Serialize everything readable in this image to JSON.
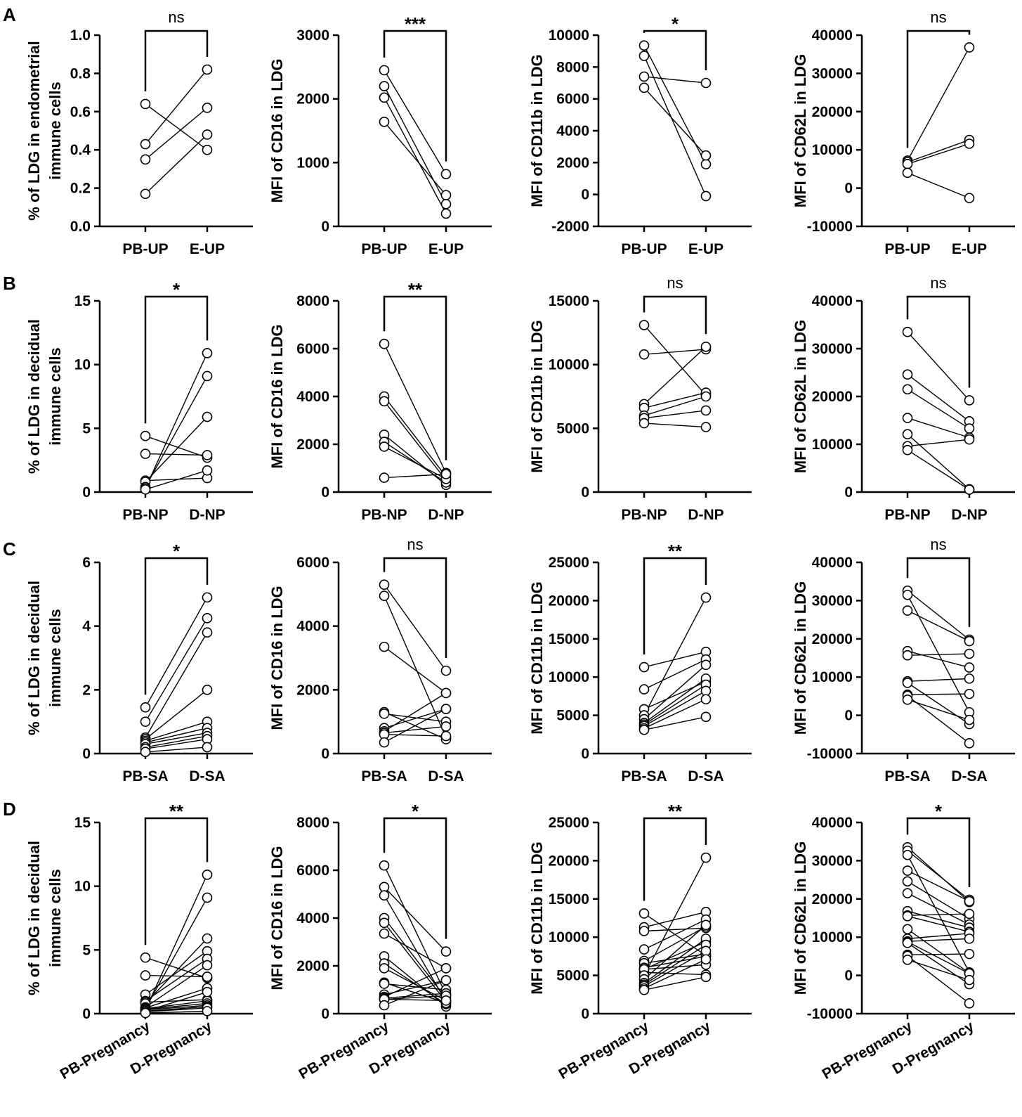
{
  "chart_data": [
    {
      "panel": "A",
      "type": "scatter",
      "paired": true,
      "ylabel": [
        "% of LDG in endometrial",
        "immune cells"
      ],
      "ylim": [
        0,
        1.0
      ],
      "yticks": [
        "0.0",
        "0.2",
        "0.4",
        "0.6",
        "0.8",
        "1.0"
      ],
      "categories": [
        "PB-UP",
        "E-UP"
      ],
      "significance": "ns",
      "pairs": [
        [
          0.17,
          0.48
        ],
        [
          0.35,
          0.62
        ],
        [
          0.43,
          0.82
        ],
        [
          0.64,
          0.4
        ]
      ]
    },
    {
      "panel": "A",
      "type": "scatter",
      "paired": true,
      "ylabel": [
        "MFI of CD16 in LDG"
      ],
      "ylim": [
        0,
        3000
      ],
      "yticks": [
        "0",
        "1000",
        "2000",
        "3000"
      ],
      "categories": [
        "PB-UP",
        "E-UP"
      ],
      "significance": "***",
      "pairs": [
        [
          2450,
          820
        ],
        [
          2200,
          350
        ],
        [
          2020,
          200
        ],
        [
          1640,
          490
        ]
      ]
    },
    {
      "panel": "A",
      "type": "scatter",
      "paired": true,
      "ylabel": [
        "MFI of CD11b in LDG"
      ],
      "ylim": [
        -2000,
        10000
      ],
      "yticks": [
        "-2000",
        "0",
        "2000",
        "4000",
        "6000",
        "8000",
        "10000"
      ],
      "categories": [
        "PB-UP",
        "E-UP"
      ],
      "significance": "*",
      "pairs": [
        [
          9350,
          1900
        ],
        [
          8700,
          -100
        ],
        [
          7400,
          7000
        ],
        [
          6700,
          2450
        ]
      ]
    },
    {
      "panel": "A",
      "type": "scatter",
      "paired": true,
      "ylabel": [
        "MFI of CD62L in LDG"
      ],
      "ylim": [
        -10000,
        40000
      ],
      "yticks": [
        "-10000",
        "0",
        "10000",
        "20000",
        "30000",
        "40000"
      ],
      "categories": [
        "PB-UP",
        "E-UP"
      ],
      "significance": "ns",
      "pairs": [
        [
          7200,
          36800
        ],
        [
          6800,
          12600
        ],
        [
          6300,
          11600
        ],
        [
          4000,
          -2600
        ]
      ]
    },
    {
      "panel": "B",
      "type": "scatter",
      "paired": true,
      "ylabel": [
        "% of LDG in decidual",
        "immune cells"
      ],
      "ylim": [
        0,
        15
      ],
      "yticks": [
        "0",
        "5",
        "10",
        "15"
      ],
      "categories": [
        "PB-NP",
        "D-NP"
      ],
      "significance": "*",
      "pairs": [
        [
          4.4,
          2.7
        ],
        [
          3.0,
          2.9
        ],
        [
          0.9,
          1.1
        ],
        [
          0.8,
          5.9
        ],
        [
          0.4,
          9.1
        ],
        [
          0.3,
          10.9
        ],
        [
          0.2,
          1.7
        ]
      ]
    },
    {
      "panel": "B",
      "type": "scatter",
      "paired": true,
      "ylabel": [
        "MFI of CD16 in LDG"
      ],
      "ylim": [
        0,
        8000
      ],
      "yticks": [
        "0",
        "2000",
        "4000",
        "6000",
        "8000"
      ],
      "categories": [
        "PB-NP",
        "D-NP"
      ],
      "significance": "**",
      "pairs": [
        [
          6200,
          800
        ],
        [
          4000,
          650
        ],
        [
          3800,
          500
        ],
        [
          2400,
          300
        ],
        [
          2100,
          400
        ],
        [
          1900,
          550
        ],
        [
          600,
          750
        ]
      ]
    },
    {
      "panel": "B",
      "type": "scatter",
      "paired": true,
      "ylabel": [
        "MFI of CD11b in LDG"
      ],
      "ylim": [
        0,
        15000
      ],
      "yticks": [
        "0",
        "5000",
        "10000",
        "15000"
      ],
      "categories": [
        "PB-NP",
        "D-NP"
      ],
      "significance": "ns",
      "pairs": [
        [
          13100,
          7600
        ],
        [
          10800,
          11200
        ],
        [
          6900,
          11400
        ],
        [
          6600,
          7800
        ],
        [
          6000,
          7500
        ],
        [
          5800,
          6400
        ],
        [
          5400,
          5100
        ]
      ]
    },
    {
      "panel": "B",
      "type": "scatter",
      "paired": true,
      "ylabel": [
        "MFI of CD62L in LDG"
      ],
      "ylim": [
        0,
        40000
      ],
      "yticks": [
        "0",
        "10000",
        "20000",
        "30000",
        "40000"
      ],
      "categories": [
        "PB-NP",
        "D-NP"
      ],
      "significance": "ns",
      "pairs": [
        [
          33500,
          19200
        ],
        [
          24600,
          14800
        ],
        [
          21500,
          13300
        ],
        [
          15500,
          11400
        ],
        [
          12100,
          600
        ],
        [
          9600,
          11000
        ],
        [
          8800,
          500
        ]
      ]
    },
    {
      "panel": "C",
      "type": "scatter",
      "paired": true,
      "ylabel": [
        "% of LDG in decidual",
        "immune cells"
      ],
      "ylim": [
        0,
        6
      ],
      "yticks": [
        "0",
        "2",
        "4",
        "6"
      ],
      "categories": [
        "PB-SA",
        "D-SA"
      ],
      "significance": "*",
      "pairs": [
        [
          1.45,
          4.9
        ],
        [
          1.0,
          4.25
        ],
        [
          0.5,
          3.8
        ],
        [
          0.45,
          2.0
        ],
        [
          0.4,
          1.0
        ],
        [
          0.35,
          0.8
        ],
        [
          0.3,
          0.65
        ],
        [
          0.2,
          0.55
        ],
        [
          0.15,
          0.45
        ],
        [
          0.05,
          0.2
        ]
      ]
    },
    {
      "panel": "C",
      "type": "scatter",
      "paired": true,
      "ylabel": [
        "MFI of CD16 in LDG"
      ],
      "ylim": [
        0,
        6000
      ],
      "yticks": [
        "0",
        "2000",
        "4000",
        "6000"
      ],
      "categories": [
        "PB-SA",
        "D-SA"
      ],
      "significance": "ns",
      "pairs": [
        [
          5300,
          2600
        ],
        [
          4950,
          500
        ],
        [
          3350,
          1900
        ],
        [
          1300,
          450
        ],
        [
          1250,
          1000
        ],
        [
          800,
          1400
        ],
        [
          700,
          1900
        ],
        [
          650,
          850
        ],
        [
          600,
          550
        ],
        [
          350,
          1400
        ]
      ]
    },
    {
      "panel": "C",
      "type": "scatter",
      "paired": true,
      "ylabel": [
        "MFI of CD11b in LDG"
      ],
      "ylim": [
        0,
        25000
      ],
      "yticks": [
        "0",
        "5000",
        "10000",
        "15000",
        "20000",
        "25000"
      ],
      "categories": [
        "PB-SA",
        "D-SA"
      ],
      "significance": "**",
      "pairs": [
        [
          11300,
          13300
        ],
        [
          8400,
          12300
        ],
        [
          5800,
          9400
        ],
        [
          5000,
          20400
        ],
        [
          4500,
          11600
        ],
        [
          4000,
          9800
        ],
        [
          3800,
          9000
        ],
        [
          3600,
          8200
        ],
        [
          3300,
          7100
        ],
        [
          3100,
          4800
        ]
      ]
    },
    {
      "panel": "C",
      "type": "scatter",
      "paired": true,
      "ylabel": [
        "MFI of CD62L in LDG"
      ],
      "ylim": [
        -10000,
        40000
      ],
      "yticks": [
        "-10000",
        "0",
        "10000",
        "20000",
        "30000",
        "40000"
      ],
      "categories": [
        "PB-SA",
        "D-SA"
      ],
      "significance": "ns",
      "pairs": [
        [
          32600,
          19800
        ],
        [
          31500,
          800
        ],
        [
          27400,
          19400
        ],
        [
          16800,
          12500
        ],
        [
          15700,
          16100
        ],
        [
          8900,
          9600
        ],
        [
          8500,
          -2300
        ],
        [
          5400,
          5600
        ],
        [
          5100,
          -7300
        ],
        [
          4100,
          -1200
        ]
      ]
    },
    {
      "panel": "D",
      "type": "scatter",
      "paired": true,
      "ylabel": [
        "% of LDG in decidual",
        "immune cells"
      ],
      "ylim": [
        0,
        15
      ],
      "yticks": [
        "0",
        "5",
        "10",
        "15"
      ],
      "categories": [
        "PB-Pregnancy",
        "D-Pregnancy"
      ],
      "significance": "**",
      "pairs": [
        [
          4.4,
          2.8
        ],
        [
          3.0,
          2.9
        ],
        [
          1.5,
          4.9
        ],
        [
          1.0,
          4.3
        ],
        [
          0.9,
          1.1
        ],
        [
          0.8,
          5.9
        ],
        [
          0.5,
          3.8
        ],
        [
          0.45,
          2.0
        ],
        [
          0.4,
          9.1
        ],
        [
          0.4,
          1.0
        ],
        [
          0.35,
          0.8
        ],
        [
          0.3,
          10.9
        ],
        [
          0.3,
          0.65
        ],
        [
          0.2,
          1.7
        ],
        [
          0.2,
          0.55
        ],
        [
          0.15,
          0.45
        ],
        [
          0.05,
          0.2
        ]
      ]
    },
    {
      "panel": "D",
      "type": "scatter",
      "paired": true,
      "ylabel": [
        "MFI of CD16 in LDG"
      ],
      "ylim": [
        0,
        8000
      ],
      "yticks": [
        "0",
        "2000",
        "4000",
        "6000",
        "8000"
      ],
      "categories": [
        "PB-Pregnancy",
        "D-Pregnancy"
      ],
      "significance": "*",
      "pairs": [
        [
          6200,
          800
        ],
        [
          5300,
          2600
        ],
        [
          4950,
          500
        ],
        [
          4000,
          650
        ],
        [
          3800,
          500
        ],
        [
          3350,
          1900
        ],
        [
          2400,
          300
        ],
        [
          2100,
          400
        ],
        [
          1900,
          550
        ],
        [
          1300,
          450
        ],
        [
          1250,
          1000
        ],
        [
          800,
          1400
        ],
        [
          700,
          1900
        ],
        [
          650,
          850
        ],
        [
          600,
          750
        ],
        [
          600,
          550
        ],
        [
          350,
          1400
        ]
      ]
    },
    {
      "panel": "D",
      "type": "scatter",
      "paired": true,
      "ylabel": [
        "MFI of CD11b in LDG"
      ],
      "ylim": [
        0,
        25000
      ],
      "yticks": [
        "0",
        "5000",
        "10000",
        "15000",
        "20000",
        "25000"
      ],
      "categories": [
        "PB-Pregnancy",
        "D-Pregnancy"
      ],
      "significance": "**",
      "pairs": [
        [
          13100,
          7600
        ],
        [
          11300,
          13300
        ],
        [
          10800,
          11200
        ],
        [
          8400,
          12300
        ],
        [
          6900,
          11400
        ],
        [
          6600,
          7800
        ],
        [
          6000,
          7500
        ],
        [
          5800,
          9400
        ],
        [
          5400,
          5100
        ],
        [
          5800,
          6400
        ],
        [
          5000,
          20400
        ],
        [
          4500,
          11600
        ],
        [
          4000,
          9800
        ],
        [
          3800,
          9000
        ],
        [
          3600,
          8200
        ],
        [
          3300,
          7100
        ],
        [
          3100,
          4800
        ]
      ]
    },
    {
      "panel": "D",
      "type": "scatter",
      "paired": true,
      "ylabel": [
        "MFI of CD62L in LDG"
      ],
      "ylim": [
        -10000,
        40000
      ],
      "yticks": [
        "-10000",
        "0",
        "10000",
        "20000",
        "30000",
        "40000"
      ],
      "categories": [
        "PB-Pregnancy",
        "D-Pregnancy"
      ],
      "significance": "*",
      "pairs": [
        [
          33500,
          19200
        ],
        [
          32600,
          19800
        ],
        [
          31500,
          800
        ],
        [
          27400,
          19400
        ],
        [
          24600,
          14800
        ],
        [
          21500,
          13300
        ],
        [
          16800,
          12500
        ],
        [
          15700,
          16100
        ],
        [
          15500,
          11400
        ],
        [
          12100,
          600
        ],
        [
          9600,
          11000
        ],
        [
          8900,
          9600
        ],
        [
          8800,
          500
        ],
        [
          8500,
          -2300
        ],
        [
          5400,
          5600
        ],
        [
          5100,
          -7300
        ],
        [
          4100,
          -1200
        ]
      ]
    }
  ]
}
